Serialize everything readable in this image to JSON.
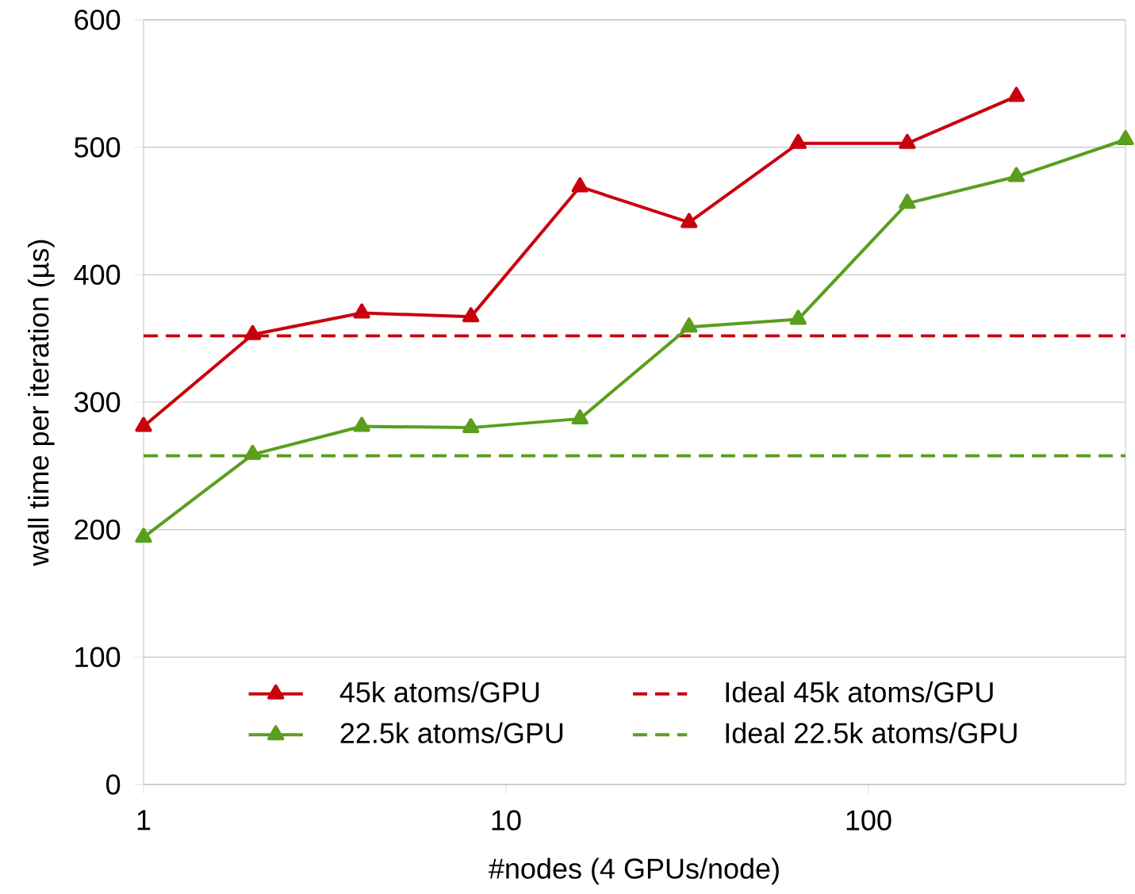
{
  "chart_data": {
    "type": "line",
    "xlabel": "#nodes (4 GPUs/node)",
    "ylabel": "wall time per iteration (µs)",
    "log": "x",
    "grid": "y",
    "legend": "bottom",
    "xlim": [
      1,
      512
    ],
    "ylim": [
      0,
      600
    ],
    "xticks": [
      1,
      10,
      100
    ],
    "yticks": [
      0,
      100,
      200,
      300,
      400,
      500,
      600
    ],
    "series": [
      {
        "name": "45k atoms/GPU",
        "color": "#c9000e",
        "marker": "triangle",
        "line_style": "solid",
        "x": [
          1,
          2,
          4,
          8,
          16,
          32,
          64,
          128,
          256
        ],
        "values": [
          281,
          353,
          370,
          367,
          469,
          441,
          503,
          503,
          540
        ]
      },
      {
        "name": "Ideal 45k atoms/GPU",
        "color": "#c9000e",
        "marker": "none",
        "line_style": "dashed",
        "x": [
          1,
          512
        ],
        "values": [
          352,
          352
        ]
      },
      {
        "name": "22.5k atoms/GPU",
        "color": "#5a9e1e",
        "marker": "triangle",
        "line_style": "solid",
        "x": [
          1,
          2,
          4,
          8,
          16,
          32,
          64,
          128,
          256,
          512
        ],
        "values": [
          194,
          259,
          281,
          280,
          287,
          359,
          365,
          456,
          477,
          506
        ]
      },
      {
        "name": "Ideal 22.5k atoms/GPU",
        "color": "#5a9e1e",
        "marker": "none",
        "line_style": "dashed",
        "x": [
          1,
          512
        ],
        "values": [
          258,
          258
        ]
      }
    ]
  }
}
